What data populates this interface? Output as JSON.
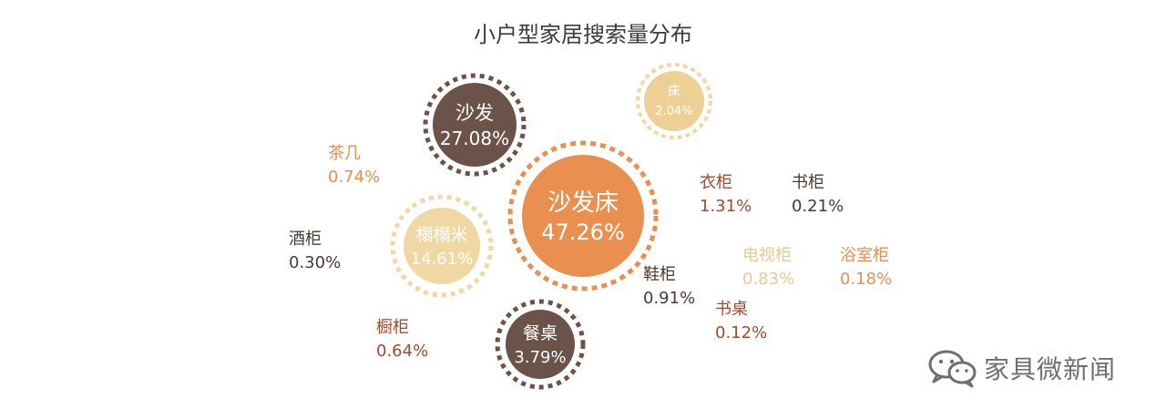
{
  "chart_data": {
    "type": "bubble",
    "title": "小户型家居搜索量分布",
    "items": [
      {
        "name": "沙发床",
        "value": "47.26%",
        "style": "circle",
        "color": "#e98f4f",
        "ring_color": "#e98f4f"
      },
      {
        "name": "沙发",
        "value": "27.08%",
        "style": "circle",
        "color": "#6b5349",
        "ring_color": "#6b5349"
      },
      {
        "name": "榻榻米",
        "value": "14.61%",
        "style": "circle",
        "color": "#f0d8a4",
        "ring_color": "#f0d8a4"
      },
      {
        "name": "餐桌",
        "value": "3.79%",
        "style": "circle",
        "color": "#6b5349",
        "ring_color": "#6b5349"
      },
      {
        "name": "床",
        "value": "2.04%",
        "style": "circle",
        "color": "#ecd096",
        "ring_color": "#f0d8a4"
      },
      {
        "name": "衣柜",
        "value": "1.31%",
        "style": "text",
        "color": "#a8482a"
      },
      {
        "name": "鞋柜",
        "value": "0.91%",
        "style": "text",
        "color": "#4a3a32"
      },
      {
        "name": "电视柜",
        "value": "0.83%",
        "style": "text",
        "color": "#e7c98d"
      },
      {
        "name": "茶几",
        "value": "0.74%",
        "style": "text",
        "color": "#e98f4f"
      },
      {
        "name": "橱柜",
        "value": "0.64%",
        "style": "text",
        "color": "#a8482a"
      },
      {
        "name": "酒柜",
        "value": "0.30%",
        "style": "text",
        "color": "#4a3a32"
      },
      {
        "name": "书柜",
        "value": "0.21%",
        "style": "text",
        "color": "#4a3a32"
      },
      {
        "name": "浴室柜",
        "value": "0.18%",
        "style": "text",
        "color": "#e98f4f"
      },
      {
        "name": "书桌",
        "value": "0.12%",
        "style": "text",
        "color": "#a8482a"
      }
    ]
  },
  "watermark": {
    "text": "家具微新闻",
    "icon": "wechat-icon",
    "color": "#6f6f6f"
  }
}
